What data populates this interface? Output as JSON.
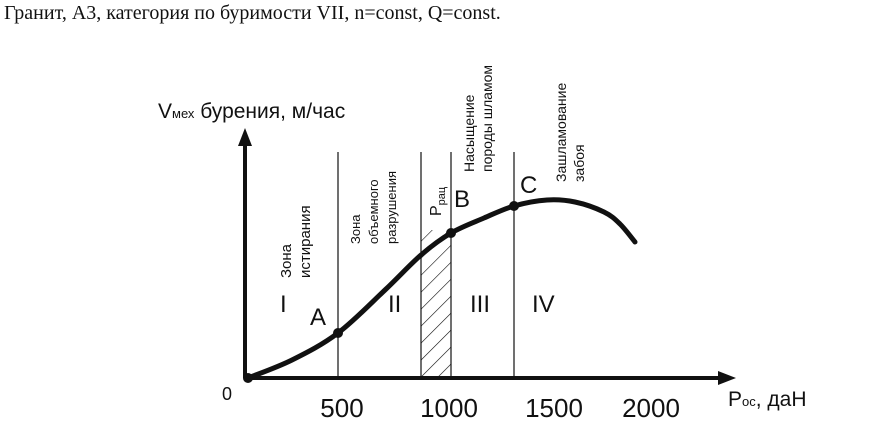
{
  "title": "Гранит, А3, категория по буримости VII, n=const, Q=const.",
  "axes": {
    "y_label_main": "V",
    "y_label_sub": "мех",
    "y_label_rest": " бурения, м/час",
    "x_label_main": "P",
    "x_label_sub": "ос",
    "x_label_rest": ", даН",
    "origin": "0"
  },
  "chart_data": {
    "type": "line",
    "title": "Гранит, А3, категория по буримости VII, n=const, Q=const.",
    "xlabel": "Pос, даН",
    "ylabel": "Vмех бурения, м/час",
    "xticks": [
      "500",
      "1000",
      "1500",
      "2000"
    ],
    "x": [
      0,
      250,
      450,
      650,
      850,
      1000,
      1150,
      1300,
      1450,
      1550,
      1700,
      1800,
      1900
    ],
    "curve_points": [
      "P0",
      "P1",
      "A",
      "P3",
      "P4",
      "B",
      "P6",
      "C",
      "P8",
      "P9",
      "P10",
      "P11",
      "P12"
    ],
    "boundaries": [
      450,
      850,
      1000,
      1300
    ],
    "points": [
      {
        "label": "A",
        "x": 450
      },
      {
        "label": "B",
        "x": 1000
      },
      {
        "label": "C",
        "x": 1300
      }
    ],
    "zones": [
      {
        "roman": "I",
        "name": [
          "Зона",
          "истирания"
        ]
      },
      {
        "roman": "II",
        "name": [
          "Зона",
          "объемного",
          "разрушения"
        ]
      },
      {
        "roman": "III",
        "name": [
          "Насыщение",
          "породы шламом"
        ]
      },
      {
        "roman": "IV",
        "name": [
          "Зашламование",
          "забоя"
        ]
      }
    ],
    "p_rac": {
      "main": "P",
      "sub": "рац"
    }
  }
}
